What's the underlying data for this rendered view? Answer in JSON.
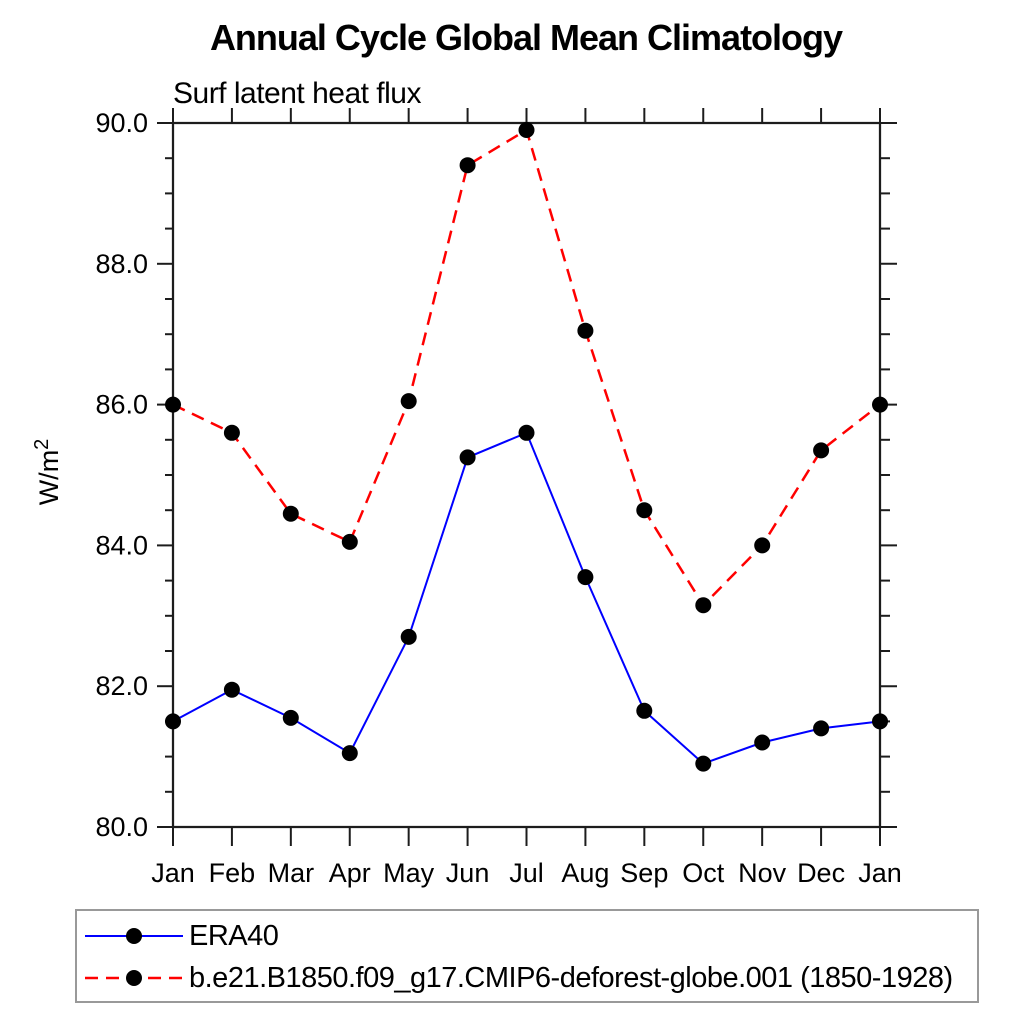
{
  "chart_data": {
    "type": "line",
    "title": "Annual Cycle Global Mean Climatology",
    "subtitle": "Surf latent heat flux",
    "categories": [
      "Jan",
      "Feb",
      "Mar",
      "Apr",
      "May",
      "Jun",
      "Jul",
      "Aug",
      "Sep",
      "Oct",
      "Nov",
      "Dec",
      "Jan"
    ],
    "series": [
      {
        "name": "ERA40",
        "color": "#0000ff",
        "line_style": "solid",
        "line_width": 2,
        "values": [
          81.5,
          81.95,
          81.55,
          81.05,
          82.7,
          85.25,
          85.6,
          83.55,
          81.65,
          80.9,
          81.2,
          81.4,
          81.5
        ]
      },
      {
        "name": "b.e21.B1850.f09_g17.CMIP6-deforest-globe.001 (1850-1928)",
        "color": "#ff0000",
        "line_style": "dashed",
        "line_width": 2.5,
        "values": [
          86.0,
          85.6,
          84.45,
          84.05,
          86.05,
          89.4,
          89.9,
          87.05,
          84.5,
          83.15,
          84.0,
          85.35,
          86.0
        ]
      }
    ],
    "marker": {
      "shape": "circle",
      "color": "#000000",
      "radius": 8
    },
    "y_axis": {
      "label": "W/m²",
      "label_base": "W/m",
      "label_exponent": "2",
      "ylim": [
        80.0,
        90.0
      ],
      "tick_labels": [
        "90.0",
        "88.0",
        "86.0",
        "84.0",
        "82.0",
        "80.0"
      ],
      "major_step": 2.0,
      "minor_step": 0.5
    },
    "x_axis": {
      "tick_labels": [
        "Jan",
        "Feb",
        "Mar",
        "Apr",
        "May",
        "Jun",
        "Jul",
        "Aug",
        "Sep",
        "Oct",
        "Nov",
        "Dec",
        "Jan"
      ]
    },
    "grid": false,
    "legend_position": "bottom-left",
    "axis_color": "#1c1c1c",
    "legend_border_color": "#999999"
  }
}
